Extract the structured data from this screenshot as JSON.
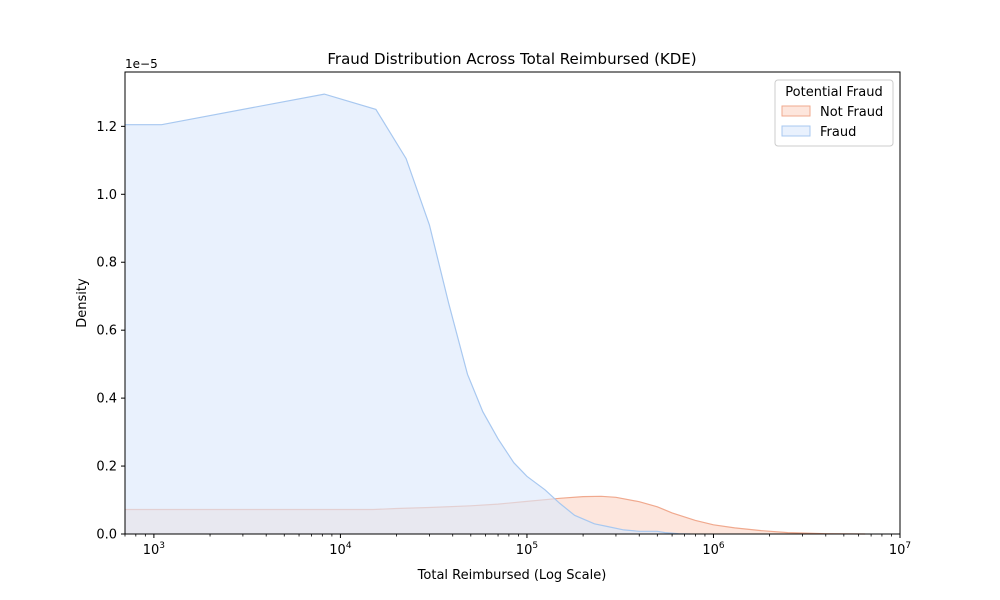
{
  "chart_data": {
    "type": "area",
    "title": "Fraud Distribution Across Total Reimbursed (KDE)",
    "xlabel": "Total Reimbursed (Log Scale)",
    "ylabel": "Density",
    "x_scale": "log",
    "xlim": [
      700,
      10000000
    ],
    "ylim": [
      0,
      1.36e-05
    ],
    "y_offset_label": "1e−5",
    "y_ticks": [
      {
        "value": 0.0,
        "label": "0.0"
      },
      {
        "value": 2e-06,
        "label": "0.2"
      },
      {
        "value": 4e-06,
        "label": "0.4"
      },
      {
        "value": 6e-06,
        "label": "0.6"
      },
      {
        "value": 8e-06,
        "label": "0.8"
      },
      {
        "value": 1e-05,
        "label": "1.0"
      },
      {
        "value": 1.2e-05,
        "label": "1.2"
      }
    ],
    "x_ticks": [
      {
        "value": 1000,
        "base": "10",
        "exp": "3"
      },
      {
        "value": 10000,
        "base": "10",
        "exp": "4"
      },
      {
        "value": 100000,
        "base": "10",
        "exp": "5"
      },
      {
        "value": 1000000,
        "base": "10",
        "exp": "6"
      },
      {
        "value": 10000000,
        "base": "10",
        "exp": "7"
      }
    ],
    "grid": false,
    "legend": {
      "title": "Potential Fraud",
      "position": "top-right"
    },
    "series": [
      {
        "name": "Not Fraud",
        "stroke": "#f0a98e",
        "fill": "#fbd7c8",
        "x": [
          700,
          2000,
          5000,
          10000,
          15000,
          20000,
          30000,
          50000,
          70000,
          100000,
          150000,
          200000,
          250000,
          300000,
          400000,
          500000,
          600000,
          800000,
          1000000,
          1300000,
          1800000,
          2500000,
          4000000,
          6500000
        ],
        "y": [
          7.2e-07,
          7.2e-07,
          7.2e-07,
          7.2e-07,
          7.2e-07,
          7.5e-07,
          7.8e-07,
          8.3e-07,
          8.8e-07,
          9.6e-07,
          1.05e-06,
          1.1e-06,
          1.11e-06,
          1.08e-06,
          9.5e-07,
          8e-07,
          6.2e-07,
          4e-07,
          2.7e-07,
          1.8e-07,
          1e-07,
          4e-08,
          1e-08,
          0.0
        ]
      },
      {
        "name": "Fraud",
        "stroke": "#a8c8f0",
        "fill": "#dce8fb",
        "x": [
          700,
          1100,
          8200,
          15500,
          22500,
          30000,
          38000,
          48000,
          58000,
          70000,
          85000,
          100000,
          125000,
          150000,
          180000,
          230000,
          270000,
          330000,
          400000,
          500000,
          550000,
          650000,
          750000
        ],
        "y": [
          1.205e-05,
          1.205e-05,
          1.295e-05,
          1.25e-05,
          1.105e-05,
          9.1e-06,
          6.8e-06,
          4.7e-06,
          3.6e-06,
          2.8e-06,
          2.1e-06,
          1.7e-06,
          1.3e-06,
          9e-07,
          5.5e-07,
          3e-07,
          2.2e-07,
          1.2e-07,
          8e-08,
          8e-08,
          4e-08,
          1e-08,
          0.0
        ]
      }
    ]
  }
}
